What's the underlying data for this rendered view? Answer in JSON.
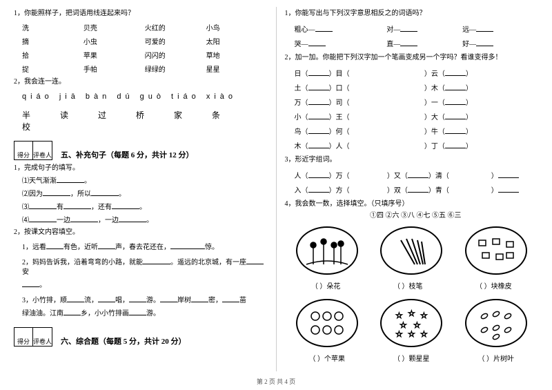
{
  "left": {
    "q1": {
      "prompt": "1，你能照样子，把词语用线连起来吗？",
      "rows": [
        [
          "洗",
          "贝壳",
          "火红的",
          "小鸟"
        ],
        [
          "摘",
          "小虫",
          "可爱的",
          "太阳"
        ],
        [
          "拾",
          "苹果",
          "闪闪的",
          "草地"
        ],
        [
          "捉",
          "手帕",
          "绿绿的",
          "星星"
        ]
      ]
    },
    "q2": {
      "prompt": "2，我会连一连。",
      "pinyin": "qiáo  jiā  bàn  dú  guò  tiáo  xiào",
      "chars": "半  读  过  桥  家  条  校"
    },
    "section5": {
      "box1": "得分",
      "box2": "评卷人",
      "title": "五、补充句子（每题 6 分，共计 12 分）"
    },
    "s5q1": {
      "prompt": "1，完成句子的填写。",
      "items": [
        "⑴天气渐渐",
        "⑵因为",
        "⑶",
        "⑷"
      ]
    },
    "s5q2": {
      "prompt": "2，按课文内容填空。",
      "l1a": "1，远看",
      "l1b": "有色，近听",
      "l1c": "声，春去花还在，",
      "l1d": "惊。",
      "l2a": "2，妈妈告诉我，沿着弯弯的小路，就能",
      "l2b": "。遥远的北京城，有一座",
      "l2c": "安",
      "l3a": "3，小竹排，顺",
      "l3b": "流，",
      "l3c": "唱，",
      "l3d": "游。",
      "l3e": "岸树",
      "l3f": "密，",
      "l3g": "苗",
      "l4a": "绿油油。江南",
      "l4b": "乡，小小竹排画",
      "l4c": "游。"
    },
    "section6": {
      "box1": "得分",
      "box2": "评卷人",
      "title": "六、综合题（每题 5 分，共计 20 分）"
    }
  },
  "right": {
    "q1": {
      "prompt": "1，你能写出与下列汉字意思相反之的词语吗？",
      "r1": [
        "粗心—",
        "对—",
        "远—"
      ],
      "r2": [
        "哭—",
        "直—",
        "好—"
      ]
    },
    "q2": {
      "prompt": "2，加一加。你能把下列汉字加一个笔画变成另一个字吗？看谁变得多！",
      "rows": [
        [
          "日（",
          "）目（",
          "）云（",
          "）"
        ],
        [
          "土（",
          "）口（",
          "）木（",
          "）"
        ],
        [
          "万（",
          "）司（",
          "）一（",
          "）"
        ],
        [
          "小（",
          "）王（",
          "）大（",
          "）"
        ],
        [
          "鸟（",
          "）何（",
          "）牛（",
          "）"
        ],
        [
          "木（",
          "）人（",
          "）丁（",
          "）"
        ]
      ]
    },
    "q3": {
      "prompt": "3，形近字组词。",
      "rows": [
        [
          "人（",
          "）万（",
          "）又（",
          "）清（",
          "）"
        ],
        [
          "入（",
          "）方（",
          "）双（",
          "）青（",
          "）"
        ]
      ]
    },
    "q4": {
      "prompt": "4，我会数一数，选择填空。（只填序号）",
      "opts": "①四    ②六    ③八    ④七    ⑤五    ⑥三",
      "caps1": [
        "（      ）朵花",
        "（      ）枝笔",
        "（      ）块橡皮"
      ],
      "caps2": [
        "（      ）个苹果",
        "（      ）颗星星",
        "（      ）片树叶"
      ]
    }
  },
  "footer": "第 2 页  共 4 页"
}
